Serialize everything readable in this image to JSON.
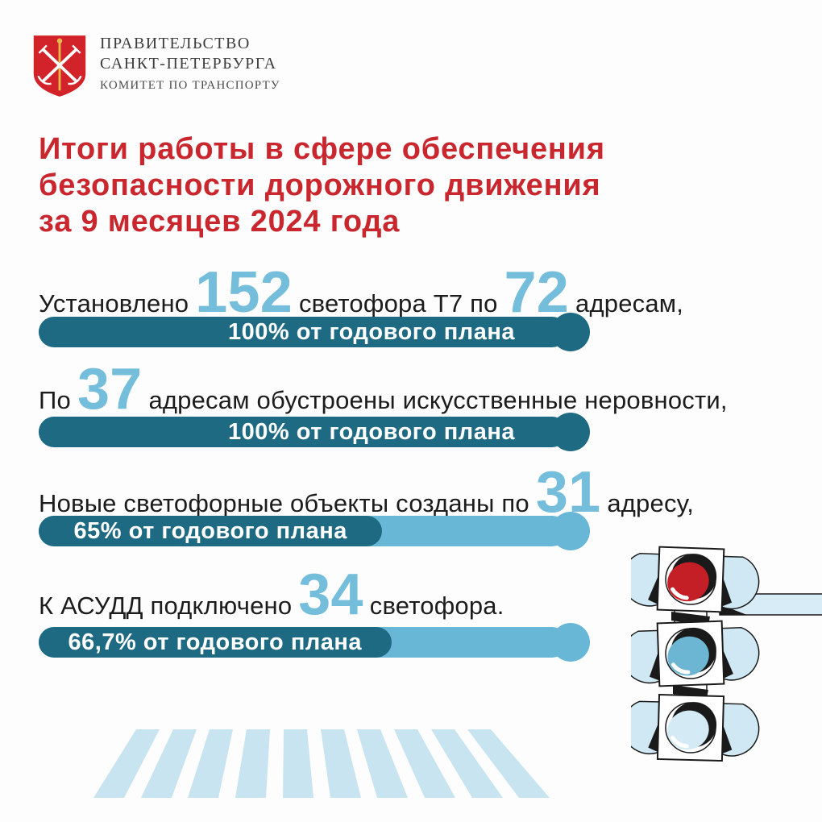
{
  "header": {
    "government_line1": "ПРАВИТЕЛЬСТВО",
    "government_line2": "САНКТ-ПЕТЕРБУРГА",
    "committee": "КОМИТЕТ ПО ТРАНСПОРТУ"
  },
  "title": {
    "line1": "Итоги работы в сфере обеспечения",
    "line2": "безопасности дорожного движения",
    "line3": "за 9 месяцев 2024 года"
  },
  "stats": [
    {
      "text1": "Установлено",
      "num1": "152",
      "text2": "светофора Т7 по",
      "num2": "72",
      "text3": "адресам,",
      "bar_label": "100% от годового плана",
      "percent": 100,
      "cap_color": "#1e6a82"
    },
    {
      "text1": "По",
      "num1": "37",
      "text2": "адресам обустроены искусственные неровности,",
      "num2": "",
      "text3": "",
      "bar_label": "100% от годового плана",
      "percent": 100,
      "cap_color": "#1e6a82"
    },
    {
      "text1": "Новые светофорные объекты созданы по",
      "num1": "31",
      "text2": "адресу,",
      "num2": "",
      "text3": "",
      "bar_label": "65% от годового плана",
      "percent": 65,
      "cap_color": "#68b7d6"
    },
    {
      "text1": "К АСУДД подключено",
      "num1": "34",
      "text2": "светофора.",
      "num2": "",
      "text3": "",
      "bar_label": "66,7% от годового плана",
      "percent": 66.7,
      "cap_color": "#68b7d6"
    }
  ],
  "colors": {
    "accent_red": "#c9262e",
    "logo_red": "#d2232a",
    "number_blue": "#74bedc",
    "bar_dark_teal": "#1e6a82",
    "bar_light_blue": "#68b7d6",
    "pale_blue": "#c8e4f0",
    "text_black": "#1c1c1c"
  },
  "icons": {
    "logo": "spb-coat-of-arms",
    "traffic_light": "traffic-light-illustration",
    "crosswalk": "zebra-crosswalk-stripes"
  },
  "chart_data": {
    "type": "bar",
    "title": "Итоги работы в сфере обеспечения безопасности дорожного движения за 9 месяцев 2024 года",
    "categories": [
      "Установлено 152 светофора Т7 по 72 адресам",
      "По 37 адресам обустроены искусственные неровности",
      "Новые светофорные объекты созданы по 31 адресу",
      "К АСУДД подключено 34 светофора"
    ],
    "values": [
      100,
      100,
      65,
      66.7
    ],
    "value_labels": [
      "100% от годового плана",
      "100% от годового плана",
      "65% от годового плана",
      "66,7% от годового плана"
    ],
    "xlabel": "",
    "ylabel": "% от годового плана",
    "xlim": [
      0,
      100
    ],
    "orientation": "horizontal",
    "grid": false,
    "legend": "none",
    "quantities": {
      "светофоры_Т7": 152,
      "адреса_Т7": 72,
      "адреса_неровности": 37,
      "новые_светофорные_объекты_адреса": 31,
      "светофоры_АСУДД": 34
    }
  }
}
